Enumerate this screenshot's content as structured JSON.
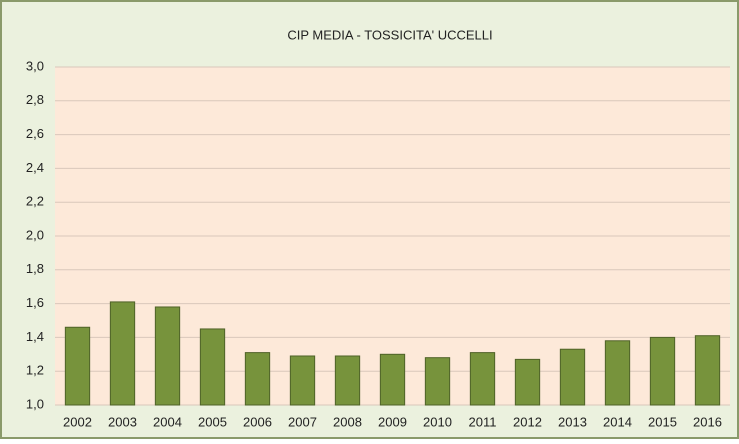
{
  "chart_data": {
    "type": "bar",
    "title": "CIP MEDIA - TOSSICITA' UCCELLI",
    "categories": [
      "2002",
      "2003",
      "2004",
      "2005",
      "2006",
      "2007",
      "2008",
      "2009",
      "2010",
      "2011",
      "2012",
      "2013",
      "2014",
      "2015",
      "2016"
    ],
    "values": [
      1.46,
      1.61,
      1.58,
      1.45,
      1.31,
      1.29,
      1.29,
      1.3,
      1.28,
      1.31,
      1.27,
      1.33,
      1.38,
      1.4,
      1.41
    ],
    "color": "#77933c",
    "ylim": [
      1.0,
      3.0
    ],
    "yticks": [
      {
        "value": 1.0,
        "label": "1,0"
      },
      {
        "value": 1.2,
        "label": "1,2"
      },
      {
        "value": 1.4,
        "label": "1,4"
      },
      {
        "value": 1.6,
        "label": "1,6"
      },
      {
        "value": 1.8,
        "label": "1,8"
      },
      {
        "value": 2.0,
        "label": "2,0"
      },
      {
        "value": 2.2,
        "label": "2,2"
      },
      {
        "value": 2.4,
        "label": "2,4"
      },
      {
        "value": 2.6,
        "label": "2,6"
      },
      {
        "value": 2.8,
        "label": "2,8"
      },
      {
        "value": 3.0,
        "label": "3,0"
      }
    ],
    "grid": true
  }
}
